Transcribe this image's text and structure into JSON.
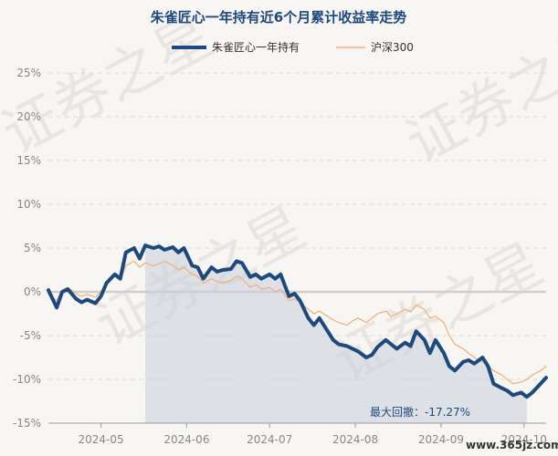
{
  "watermark": {
    "text": "证券之星",
    "url": "www.365jz.com"
  },
  "chart_data": {
    "type": "line",
    "title": "朱雀匠心一年持有近6个月累计收益率走势",
    "legend": {
      "position": "top",
      "entries": [
        "朱雀匠心一年持有",
        "沪深300"
      ]
    },
    "xlabel": "",
    "ylabel": "",
    "x_tick_labels": [
      "2024-05",
      "2024-06",
      "2024-07",
      "2024-08",
      "2024-09",
      "2024-10"
    ],
    "x_tick_dates": [
      "2024-05-01",
      "2024-06-01",
      "2024-07-01",
      "2024-08-01",
      "2024-09-01",
      "2024-10-01"
    ],
    "x_range": [
      "2024-04-12",
      "2024-10-09"
    ],
    "y_tick_labels": [
      "25%",
      "20%",
      "15%",
      "10%",
      "5%",
      "0%",
      "-5%",
      "-10%",
      "-15%"
    ],
    "ylim": [
      -15,
      25
    ],
    "y_unit": "%",
    "grid": {
      "horizontal": true,
      "vertical": false
    },
    "series": [
      {
        "name": "朱雀匠心一年持有",
        "color": "#1d4a7e",
        "points": [
          [
            "2024-04-12",
            0.2
          ],
          [
            "2024-04-15",
            -1.8
          ],
          [
            "2024-04-17",
            0.0
          ],
          [
            "2024-04-19",
            0.3
          ],
          [
            "2024-04-22",
            -0.8
          ],
          [
            "2024-04-24",
            -1.2
          ],
          [
            "2024-04-26",
            -0.9
          ],
          [
            "2024-04-29",
            -1.3
          ],
          [
            "2024-05-01",
            -0.5
          ],
          [
            "2024-05-03",
            1.0
          ],
          [
            "2024-05-06",
            2.0
          ],
          [
            "2024-05-08",
            1.5
          ],
          [
            "2024-05-10",
            4.5
          ],
          [
            "2024-05-13",
            5.0
          ],
          [
            "2024-05-15",
            3.8
          ],
          [
            "2024-05-17",
            5.3
          ],
          [
            "2024-05-20",
            5.0
          ],
          [
            "2024-05-22",
            5.2
          ],
          [
            "2024-05-24",
            4.8
          ],
          [
            "2024-05-27",
            5.1
          ],
          [
            "2024-05-29",
            4.5
          ],
          [
            "2024-05-31",
            5.0
          ],
          [
            "2024-06-03",
            3.0
          ],
          [
            "2024-06-05",
            2.8
          ],
          [
            "2024-06-07",
            1.5
          ],
          [
            "2024-06-10",
            2.8
          ],
          [
            "2024-06-12",
            2.3
          ],
          [
            "2024-06-14",
            2.5
          ],
          [
            "2024-06-17",
            2.6
          ],
          [
            "2024-06-19",
            3.5
          ],
          [
            "2024-06-21",
            3.3
          ],
          [
            "2024-06-24",
            1.7
          ],
          [
            "2024-06-26",
            2.0
          ],
          [
            "2024-06-28",
            1.5
          ],
          [
            "2024-07-01",
            2.0
          ],
          [
            "2024-07-03",
            1.5
          ],
          [
            "2024-07-05",
            2.0
          ],
          [
            "2024-07-08",
            -0.5
          ],
          [
            "2024-07-10",
            -0.2
          ],
          [
            "2024-07-12",
            -1.0
          ],
          [
            "2024-07-15",
            -3.0
          ],
          [
            "2024-07-17",
            -3.8
          ],
          [
            "2024-07-19",
            -3.0
          ],
          [
            "2024-07-22",
            -4.5
          ],
          [
            "2024-07-24",
            -5.5
          ],
          [
            "2024-07-26",
            -6.0
          ],
          [
            "2024-07-29",
            -6.2
          ],
          [
            "2024-07-31",
            -6.5
          ],
          [
            "2024-08-02",
            -6.8
          ],
          [
            "2024-08-05",
            -7.5
          ],
          [
            "2024-08-07",
            -7.2
          ],
          [
            "2024-08-09",
            -6.3
          ],
          [
            "2024-08-12",
            -5.5
          ],
          [
            "2024-08-14",
            -6.0
          ],
          [
            "2024-08-16",
            -6.5
          ],
          [
            "2024-08-19",
            -5.8
          ],
          [
            "2024-08-21",
            -6.2
          ],
          [
            "2024-08-23",
            -4.5
          ],
          [
            "2024-08-26",
            -5.5
          ],
          [
            "2024-08-28",
            -7.0
          ],
          [
            "2024-08-30",
            -5.5
          ],
          [
            "2024-09-02",
            -7.0
          ],
          [
            "2024-09-04",
            -8.5
          ],
          [
            "2024-09-06",
            -9.0
          ],
          [
            "2024-09-09",
            -8.0
          ],
          [
            "2024-09-11",
            -7.8
          ],
          [
            "2024-09-13",
            -8.2
          ],
          [
            "2024-09-16",
            -7.5
          ],
          [
            "2024-09-18",
            -8.5
          ],
          [
            "2024-09-20",
            -10.5
          ],
          [
            "2024-09-23",
            -11.0
          ],
          [
            "2024-09-25",
            -11.3
          ],
          [
            "2024-09-27",
            -11.8
          ],
          [
            "2024-09-30",
            -11.5
          ],
          [
            "2024-10-02",
            -12.0
          ],
          [
            "2024-10-04",
            -11.5
          ],
          [
            "2024-10-07",
            -10.5
          ],
          [
            "2024-10-09",
            -9.8
          ]
        ]
      },
      {
        "name": "沪深300",
        "color": "#f2b27c",
        "points": [
          [
            "2024-04-12",
            -0.3
          ],
          [
            "2024-04-15",
            -1.0
          ],
          [
            "2024-04-17",
            0.2
          ],
          [
            "2024-04-19",
            0.5
          ],
          [
            "2024-04-22",
            -0.2
          ],
          [
            "2024-04-24",
            -0.5
          ],
          [
            "2024-04-26",
            -0.3
          ],
          [
            "2024-04-29",
            -0.6
          ],
          [
            "2024-05-01",
            0.0
          ],
          [
            "2024-05-03",
            1.0
          ],
          [
            "2024-05-06",
            1.8
          ],
          [
            "2024-05-08",
            1.3
          ],
          [
            "2024-05-10",
            3.0
          ],
          [
            "2024-05-13",
            3.5
          ],
          [
            "2024-05-15",
            2.8
          ],
          [
            "2024-05-17",
            3.3
          ],
          [
            "2024-05-20",
            3.0
          ],
          [
            "2024-05-22",
            3.2
          ],
          [
            "2024-05-24",
            3.5
          ],
          [
            "2024-05-27",
            3.0
          ],
          [
            "2024-05-29",
            2.5
          ],
          [
            "2024-05-31",
            2.8
          ],
          [
            "2024-06-03",
            2.0
          ],
          [
            "2024-06-05",
            1.8
          ],
          [
            "2024-06-07",
            1.0
          ],
          [
            "2024-06-10",
            1.5
          ],
          [
            "2024-06-12",
            1.2
          ],
          [
            "2024-06-14",
            1.0
          ],
          [
            "2024-06-17",
            1.3
          ],
          [
            "2024-06-19",
            1.8
          ],
          [
            "2024-06-21",
            1.5
          ],
          [
            "2024-06-24",
            0.5
          ],
          [
            "2024-06-26",
            0.8
          ],
          [
            "2024-06-28",
            0.3
          ],
          [
            "2024-07-01",
            0.5
          ],
          [
            "2024-07-03",
            0.0
          ],
          [
            "2024-07-05",
            0.3
          ],
          [
            "2024-07-08",
            -1.0
          ],
          [
            "2024-07-10",
            -0.8
          ],
          [
            "2024-07-12",
            -1.2
          ],
          [
            "2024-07-15",
            -2.0
          ],
          [
            "2024-07-17",
            -2.5
          ],
          [
            "2024-07-19",
            -2.2
          ],
          [
            "2024-07-22",
            -2.8
          ],
          [
            "2024-07-24",
            -3.2
          ],
          [
            "2024-07-26",
            -3.5
          ],
          [
            "2024-07-29",
            -3.8
          ],
          [
            "2024-07-31",
            -3.3
          ],
          [
            "2024-08-02",
            -3.0
          ],
          [
            "2024-08-05",
            -3.5
          ],
          [
            "2024-08-07",
            -3.0
          ],
          [
            "2024-08-09",
            -2.5
          ],
          [
            "2024-08-12",
            -2.2
          ],
          [
            "2024-08-14",
            -2.8
          ],
          [
            "2024-08-16",
            -2.5
          ],
          [
            "2024-08-19",
            -2.0
          ],
          [
            "2024-08-21",
            -2.3
          ],
          [
            "2024-08-23",
            -1.5
          ],
          [
            "2024-08-26",
            -2.0
          ],
          [
            "2024-08-28",
            -3.0
          ],
          [
            "2024-08-30",
            -2.8
          ],
          [
            "2024-09-02",
            -3.5
          ],
          [
            "2024-09-04",
            -5.0
          ],
          [
            "2024-09-06",
            -6.0
          ],
          [
            "2024-09-09",
            -6.5
          ],
          [
            "2024-09-11",
            -7.0
          ],
          [
            "2024-09-13",
            -7.5
          ],
          [
            "2024-09-16",
            -8.0
          ],
          [
            "2024-09-18",
            -8.5
          ],
          [
            "2024-09-20",
            -9.0
          ],
          [
            "2024-09-23",
            -9.5
          ],
          [
            "2024-09-25",
            -10.0
          ],
          [
            "2024-09-27",
            -10.5
          ],
          [
            "2024-09-30",
            -10.3
          ],
          [
            "2024-10-02",
            -10.0
          ],
          [
            "2024-10-04",
            -9.5
          ],
          [
            "2024-10-07",
            -9.0
          ],
          [
            "2024-10-09",
            -8.5
          ]
        ]
      }
    ],
    "max_drawdown": {
      "label": "最大回撤：-17.27%",
      "start_date": "2024-05-17",
      "end_date": "2024-10-02"
    }
  }
}
